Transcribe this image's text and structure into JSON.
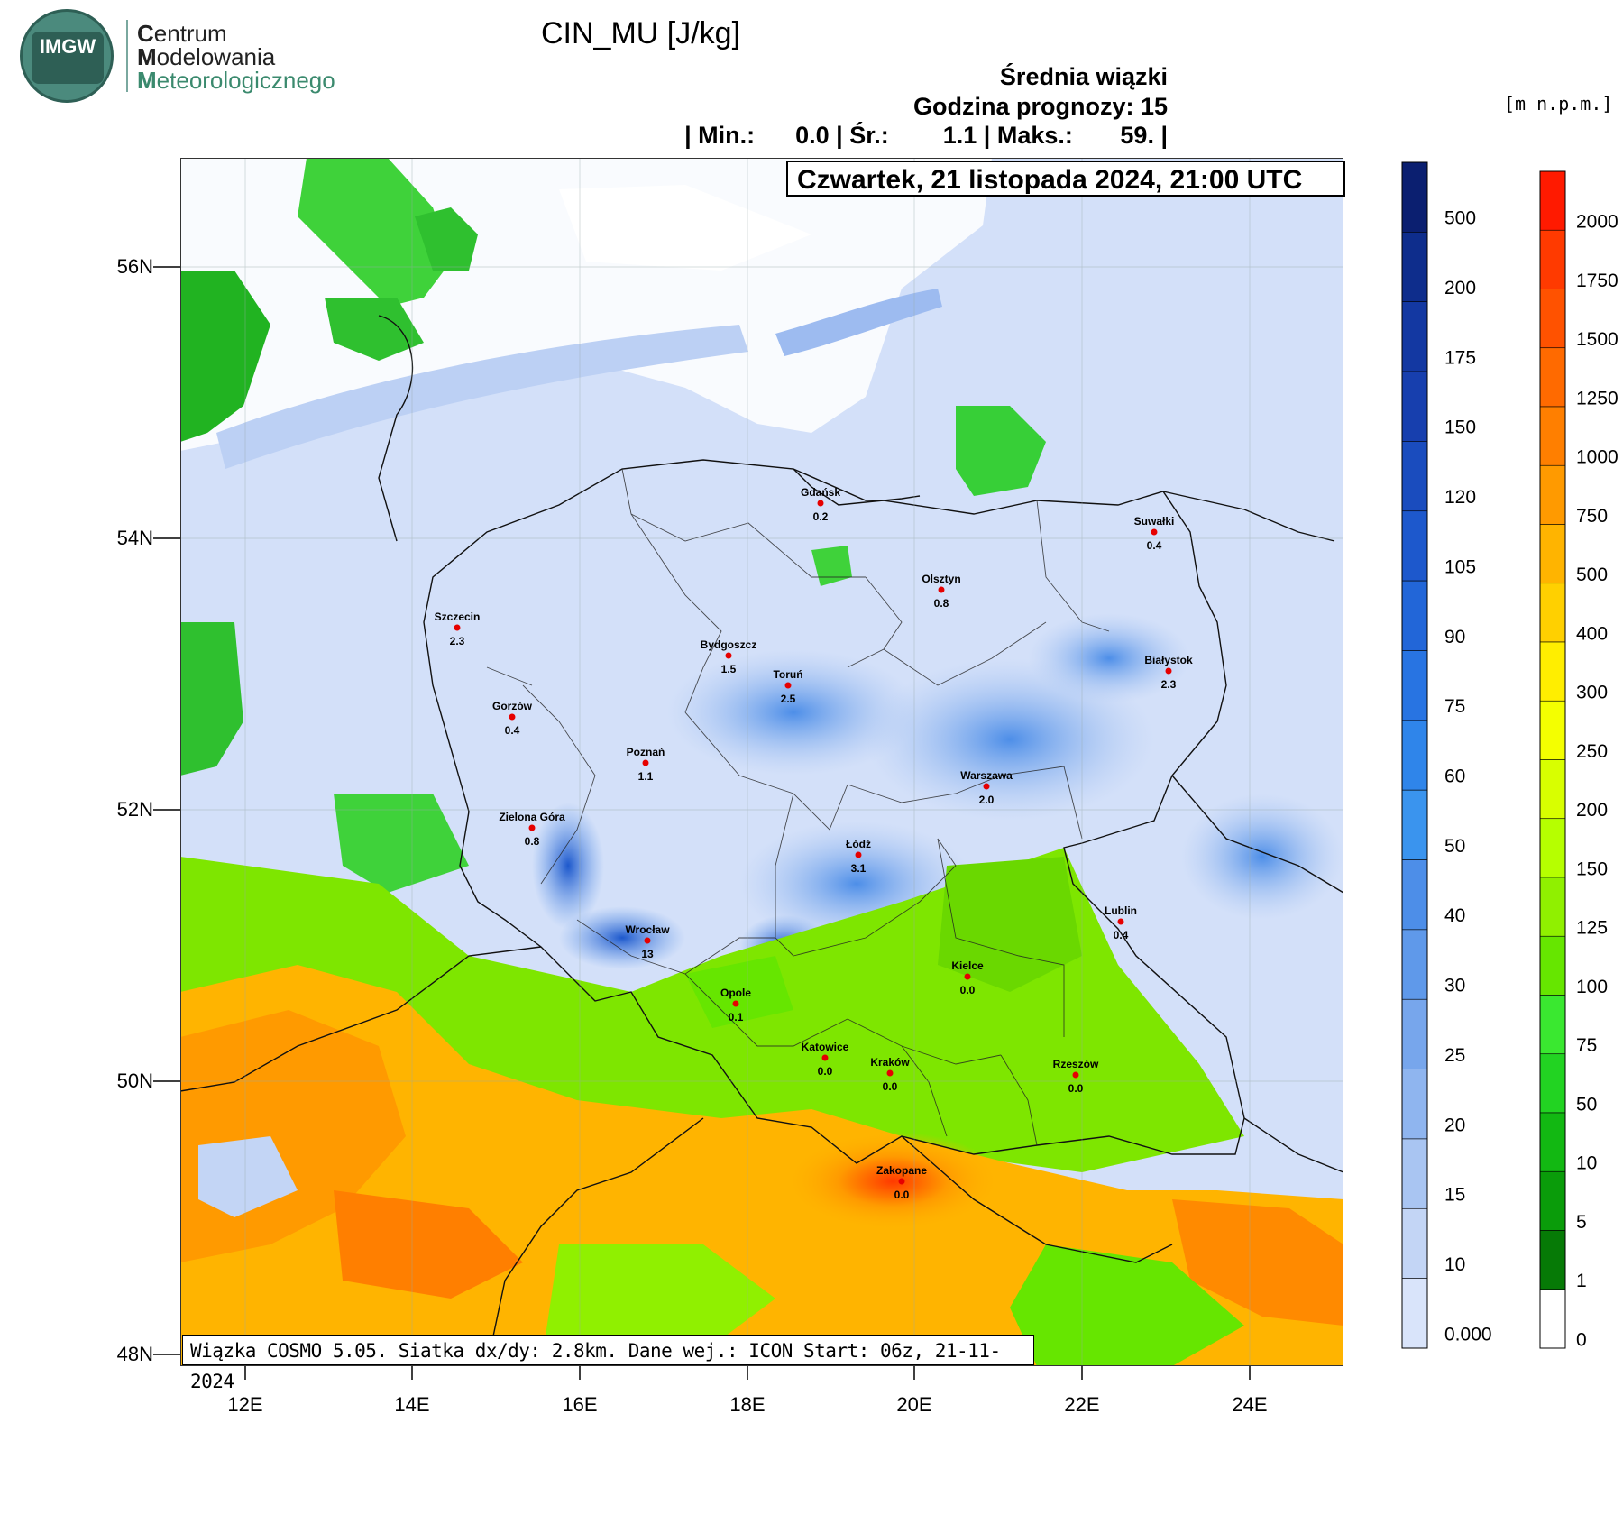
{
  "logo": {
    "org_initials": "IMGW",
    "line1_initial": "C",
    "line1_rest": "entrum",
    "line2_initial": "M",
    "line2_rest": "odelowania",
    "line3_initial": "M",
    "line3_rest": "eteorologicznego"
  },
  "header": {
    "title": "CIN_MU [J/kg]",
    "subtitle1": "Średnia wiązki",
    "subtitle2": "Godzina prognozy: 15",
    "stats": "| Min.:      0.0 | Śr.:        1.1 | Maks.:       59. |",
    "date": "Czwartek, 21 listopada 2024, 21:00 UTC"
  },
  "map": {
    "lat_labels": [
      "56N",
      "54N",
      "52N",
      "50N",
      "48N"
    ],
    "lon_labels": [
      "12E",
      "14E",
      "16E",
      "18E",
      "20E",
      "22E",
      "24E"
    ],
    "footer": "Wiązka COSMO 5.05. Siatka dx/dy: 2.8km. Dane wej.: ICON Start: 06z, 21-11-2024",
    "cities": [
      {
        "name": "Gdańsk",
        "value": "0.2"
      },
      {
        "name": "Suwałki",
        "value": "0.4"
      },
      {
        "name": "Olsztyn",
        "value": "0.8"
      },
      {
        "name": "Szczecin",
        "value": "2.3"
      },
      {
        "name": "Bydgoszcz",
        "value": "1.5"
      },
      {
        "name": "Toruń",
        "value": "2.5"
      },
      {
        "name": "Białystok",
        "value": "2.3"
      },
      {
        "name": "Gorzów",
        "value": "0.4"
      },
      {
        "name": "Poznań",
        "value": "1.1"
      },
      {
        "name": "Warszawa",
        "value": "2.0"
      },
      {
        "name": "Zielona Góra",
        "value": "0.8"
      },
      {
        "name": "Łódź",
        "value": "3.1"
      },
      {
        "name": "Lublin",
        "value": "0.4"
      },
      {
        "name": "Wrocław",
        "value": "13"
      },
      {
        "name": "Kielce",
        "value": "0.0"
      },
      {
        "name": "Opole",
        "value": "0.1"
      },
      {
        "name": "Katowice",
        "value": "0.0"
      },
      {
        "name": "Kraków",
        "value": "0.0"
      },
      {
        "name": "Rzeszów",
        "value": "0.0"
      },
      {
        "name": "Zakopane",
        "value": "0.0"
      }
    ]
  },
  "colorbar_cin": {
    "labels": [
      "500",
      "200",
      "175",
      "150",
      "120",
      "105",
      "90",
      "75",
      "60",
      "50",
      "40",
      "30",
      "25",
      "20",
      "15",
      "10",
      "0.000"
    ],
    "colors": [
      "#0b1f70",
      "#0e2d8c",
      "#1338a2",
      "#173fae",
      "#1a4cbe",
      "#1d58cc",
      "#2266d8",
      "#2874e2",
      "#2f85ea",
      "#3a94ee",
      "#4d8ee8",
      "#5f99ea",
      "#77a6ec",
      "#8fb5ef",
      "#a9c5f2",
      "#c3d5f5",
      "#d9e4fa"
    ]
  },
  "colorbar_height": {
    "unit": "[m n.p.m.]",
    "labels": [
      "2000",
      "1750",
      "1500",
      "1250",
      "1000",
      "750",
      "500",
      "400",
      "300",
      "250",
      "200",
      "150",
      "125",
      "100",
      "75",
      "50",
      "10",
      "5",
      "1",
      "0"
    ],
    "colors": [
      "#ff1a00",
      "#ff3a00",
      "#ff5200",
      "#ff6a00",
      "#ff7f00",
      "#ff9a00",
      "#ffb400",
      "#ffd000",
      "#ffee00",
      "#f4ff00",
      "#d8ff00",
      "#b6ff00",
      "#90f000",
      "#66e600",
      "#3ae830",
      "#22d322",
      "#12b812",
      "#0a9c0a",
      "#067a06",
      "#ffffff"
    ]
  }
}
